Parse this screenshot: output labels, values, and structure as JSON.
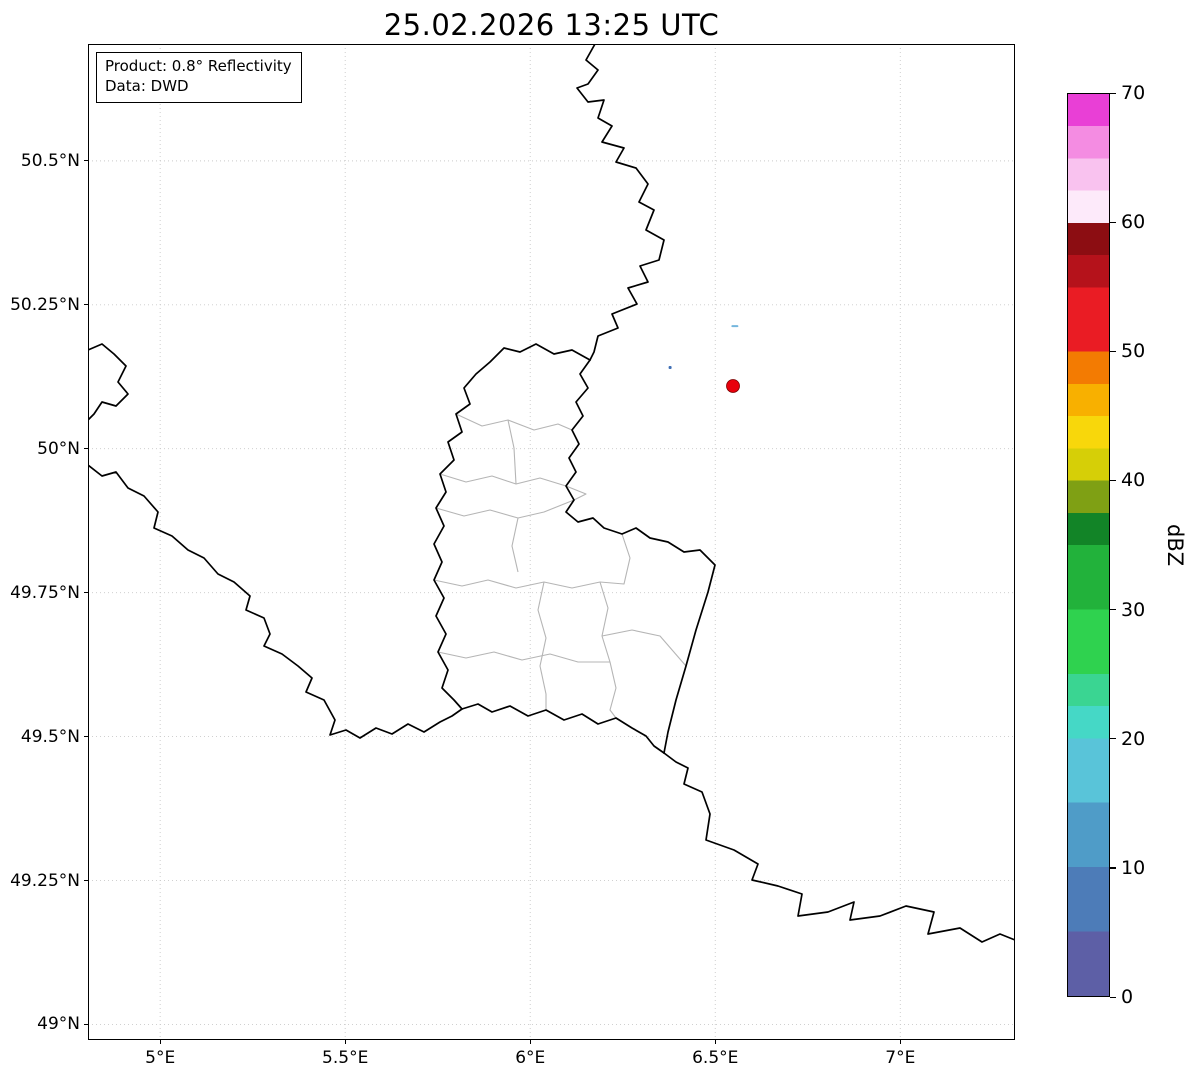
{
  "title": "25.02.2026 13:25 UTC",
  "info_box": {
    "product": "Product: 0.8° Reflectivity",
    "source": "Data: DWD"
  },
  "map": {
    "extent": {
      "lon_min": 4.805,
      "lon_max": 7.31,
      "lat_min": 48.973,
      "lat_max": 50.703
    },
    "x_ticks": [
      {
        "value": 5.0,
        "label": "5°E"
      },
      {
        "value": 5.5,
        "label": "5.5°E"
      },
      {
        "value": 6.0,
        "label": "6°E"
      },
      {
        "value": 6.5,
        "label": "6.5°E"
      },
      {
        "value": 7.0,
        "label": "7°E"
      }
    ],
    "y_ticks": [
      {
        "value": 49.0,
        "label": "49°N"
      },
      {
        "value": 49.25,
        "label": "49.25°N"
      },
      {
        "value": 49.5,
        "label": "49.5°N"
      },
      {
        "value": 49.75,
        "label": "49.75°N"
      },
      {
        "value": 50.0,
        "label": "50°N"
      },
      {
        "value": 50.25,
        "label": "50.25°N"
      },
      {
        "value": 50.5,
        "label": "50.5°N"
      }
    ],
    "grid_color": "#c9c9c9",
    "border_color": "#000000",
    "district_color": "#b5b5b5",
    "radar_site": {
      "lon": 6.548,
      "lat": 50.109,
      "color": "#e8000b",
      "edge": "#7a0000"
    },
    "echoes": [
      {
        "lon": 6.553,
        "lat": 50.213,
        "color": "#74b6dd",
        "w": 7,
        "h": 2
      },
      {
        "lon": 6.378,
        "lat": 50.141,
        "color": "#3f6fb5",
        "w": 3,
        "h": 3
      }
    ]
  },
  "colorbar": {
    "label": "dBZ",
    "min": 0,
    "max": 70,
    "ticks": [
      0,
      10,
      20,
      30,
      40,
      50,
      60,
      70
    ],
    "segments": [
      {
        "from": 0,
        "to": 5,
        "color": "#5d5fa6"
      },
      {
        "from": 5,
        "to": 10,
        "color": "#4d7cb8"
      },
      {
        "from": 10,
        "to": 15,
        "color": "#4f9cc8"
      },
      {
        "from": 15,
        "to": 20,
        "color": "#59c4d9"
      },
      {
        "from": 20,
        "to": 22.5,
        "color": "#45d8c6"
      },
      {
        "from": 22.5,
        "to": 25,
        "color": "#3ad592"
      },
      {
        "from": 25,
        "to": 30,
        "color": "#2fd24f"
      },
      {
        "from": 30,
        "to": 35,
        "color": "#22b23b"
      },
      {
        "from": 35,
        "to": 37.5,
        "color": "#128427"
      },
      {
        "from": 37.5,
        "to": 40,
        "color": "#7fa014"
      },
      {
        "from": 40,
        "to": 42.5,
        "color": "#d6cf07"
      },
      {
        "from": 42.5,
        "to": 45,
        "color": "#f8d70b"
      },
      {
        "from": 45,
        "to": 47.5,
        "color": "#f8b000"
      },
      {
        "from": 47.5,
        "to": 50,
        "color": "#f37b02"
      },
      {
        "from": 50,
        "to": 55,
        "color": "#ea1c24"
      },
      {
        "from": 55,
        "to": 57.5,
        "color": "#b5121b"
      },
      {
        "from": 57.5,
        "to": 60,
        "color": "#8c0d12"
      },
      {
        "from": 60,
        "to": 62.5,
        "color": "#fdeafa"
      },
      {
        "from": 62.5,
        "to": 65,
        "color": "#f9c2ef"
      },
      {
        "from": 65,
        "to": 67.5,
        "color": "#f48ce2"
      },
      {
        "from": 67.5,
        "to": 70,
        "color": "#e93fd6"
      }
    ]
  }
}
